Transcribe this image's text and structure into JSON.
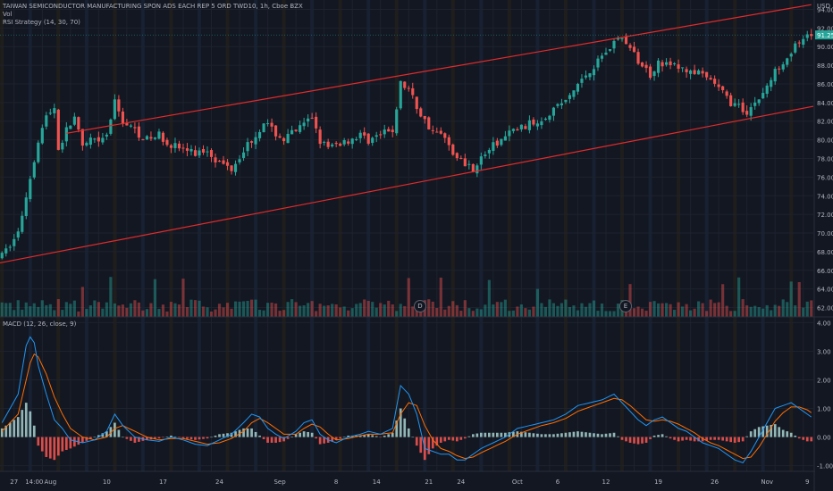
{
  "header": {
    "symbol_line": "TAIWAN SEMICONDUCTOR MANUFACTURING SPON ADS EACH REP 5 ORD TWD10, 1h, Cboe BZX",
    "vol_label": "Vol",
    "strategy_label": "RSI Strategy (14, 30, 70)",
    "currency": "USD"
  },
  "macd_pane": {
    "label": "MACD (12, 26, close, 9)"
  },
  "price_axis": {
    "ticks": [
      "94.00",
      "92.00",
      "90.00",
      "88.00",
      "86.00",
      "84.00",
      "82.00",
      "80.00",
      "78.00",
      "76.00",
      "74.00",
      "72.00",
      "70.00",
      "68.00",
      "66.00",
      "64.00",
      "62.00"
    ],
    "last_price": "91.25"
  },
  "macd_axis": {
    "ticks": [
      "4.00",
      "3.00",
      "2.00",
      "1.00",
      "0.00",
      "-1.00"
    ]
  },
  "time_axis": {
    "labels": [
      "27",
      "14:00",
      "Aug",
      "10",
      "17",
      "24",
      "Sep",
      "8",
      "14",
      "21",
      "24",
      "Oct",
      "6",
      "12",
      "19",
      "26",
      "Nov",
      "9"
    ]
  },
  "event_badges": {
    "dividend": "D",
    "earnings": "E"
  },
  "colors": {
    "background": "#131722",
    "up": "#26a69a",
    "down": "#ef5350",
    "channel": "#e02b2b",
    "macd_line": "#2196f3",
    "signal_line": "#ff6d00",
    "last_price_tag": "#26a69a"
  },
  "chart_data": [
    {
      "type": "candlestick",
      "title": "TAIWAN SEMICONDUCTOR MANUFACTURING SPON ADS EACH REP 5 ORD TWD10, 1h, Cboe BZX",
      "ylim": [
        61,
        95
      ],
      "y_ticks": [
        94,
        92,
        90,
        88,
        86,
        84,
        82,
        80,
        78,
        76,
        74,
        72,
        70,
        68,
        66,
        64,
        62
      ],
      "last_price": 91.25,
      "close_path": [
        [
          0,
          67.5
        ],
        [
          4,
          70
        ],
        [
          7,
          76
        ],
        [
          9,
          80
        ],
        [
          11,
          82.5
        ],
        [
          13,
          83.5
        ],
        [
          14,
          79
        ],
        [
          16,
          81
        ],
        [
          18,
          82.5
        ],
        [
          20,
          79
        ],
        [
          22,
          80
        ],
        [
          24,
          79.5
        ],
        [
          26,
          80.5
        ],
        [
          28,
          84
        ],
        [
          30,
          82
        ],
        [
          33,
          81
        ],
        [
          36,
          80
        ],
        [
          39,
          80.5
        ],
        [
          42,
          79.5
        ],
        [
          45,
          79
        ],
        [
          48,
          78.5
        ],
        [
          51,
          79
        ],
        [
          54,
          77.5
        ],
        [
          57,
          77
        ],
        [
          60,
          79
        ],
        [
          63,
          80.5
        ],
        [
          65,
          82
        ],
        [
          67,
          81
        ],
        [
          70,
          80
        ],
        [
          73,
          81
        ],
        [
          75,
          81.5
        ],
        [
          77,
          82.5
        ],
        [
          79,
          80
        ],
        [
          81,
          79
        ],
        [
          83,
          79.5
        ],
        [
          86,
          80
        ],
        [
          89,
          80.5
        ],
        [
          91,
          80
        ],
        [
          94,
          80.5
        ],
        [
          97,
          81
        ],
        [
          99,
          86
        ],
        [
          101,
          85.5
        ],
        [
          103,
          83.5
        ],
        [
          105,
          82
        ],
        [
          107,
          81
        ],
        [
          109,
          80.5
        ],
        [
          111,
          79.5
        ],
        [
          113,
          78
        ],
        [
          115,
          77.5
        ],
        [
          117,
          77
        ],
        [
          119,
          78
        ],
        [
          121,
          79
        ],
        [
          124,
          80
        ],
        [
          127,
          81
        ],
        [
          130,
          81.5
        ],
        [
          133,
          82
        ],
        [
          136,
          83
        ],
        [
          139,
          84
        ],
        [
          141,
          84.5
        ],
        [
          143,
          86
        ],
        [
          145,
          87
        ],
        [
          147,
          88
        ],
        [
          149,
          89
        ],
        [
          151,
          90
        ],
        [
          153,
          91
        ],
        [
          155,
          90.5
        ],
        [
          157,
          89
        ],
        [
          159,
          88
        ],
        [
          161,
          87
        ],
        [
          163,
          88.5
        ],
        [
          165,
          88
        ],
        [
          167,
          88
        ],
        [
          169,
          87.5
        ],
        [
          171,
          87.5
        ],
        [
          173,
          87
        ],
        [
          175,
          86.5
        ],
        [
          177,
          86
        ],
        [
          179,
          85
        ],
        [
          181,
          84
        ],
        [
          183,
          83.5
        ],
        [
          185,
          83
        ],
        [
          187,
          84
        ],
        [
          189,
          85
        ],
        [
          191,
          86.5
        ],
        [
          193,
          88
        ],
        [
          195,
          89
        ],
        [
          197,
          90
        ],
        [
          199,
          90.5
        ],
        [
          201,
          91.25
        ]
      ]
    },
    {
      "type": "volume",
      "title": "Vol"
    },
    {
      "type": "line",
      "title": "MACD (12, 26, close, 9)",
      "ylim": [
        -1.2,
        4.2
      ],
      "y_ticks": [
        4,
        3,
        2,
        1,
        0,
        -1
      ],
      "series": [
        {
          "name": "MACD",
          "values_path": [
            [
              0,
              0.5
            ],
            [
              4,
              1.5
            ],
            [
              6,
              3.2
            ],
            [
              7,
              3.5
            ],
            [
              8,
              3.3
            ],
            [
              9,
              2.5
            ],
            [
              11,
              1.5
            ],
            [
              13,
              0.6
            ],
            [
              15,
              0.3
            ],
            [
              17,
              -0.1
            ],
            [
              20,
              -0.2
            ],
            [
              23,
              -0.1
            ],
            [
              26,
              0.2
            ],
            [
              28,
              0.8
            ],
            [
              30,
              0.4
            ],
            [
              33,
              0.0
            ],
            [
              36,
              -0.1
            ],
            [
              39,
              -0.15
            ],
            [
              42,
              0.0
            ],
            [
              45,
              -0.1
            ],
            [
              48,
              -0.25
            ],
            [
              51,
              -0.3
            ],
            [
              54,
              -0.1
            ],
            [
              57,
              0.1
            ],
            [
              60,
              0.5
            ],
            [
              62,
              0.8
            ],
            [
              64,
              0.7
            ],
            [
              66,
              0.3
            ],
            [
              68,
              0.1
            ],
            [
              70,
              -0.05
            ],
            [
              73,
              0.2
            ],
            [
              75,
              0.5
            ],
            [
              77,
              0.6
            ],
            [
              79,
              0.1
            ],
            [
              81,
              -0.1
            ],
            [
              83,
              -0.2
            ],
            [
              86,
              0.0
            ],
            [
              89,
              0.1
            ],
            [
              91,
              0.2
            ],
            [
              94,
              0.1
            ],
            [
              97,
              0.3
            ],
            [
              99,
              1.8
            ],
            [
              101,
              1.5
            ],
            [
              103,
              0.8
            ],
            [
              105,
              -0.4
            ],
            [
              107,
              -0.5
            ],
            [
              109,
              -0.6
            ],
            [
              111,
              -0.6
            ],
            [
              113,
              -0.8
            ],
            [
              115,
              -0.8
            ],
            [
              117,
              -0.6
            ],
            [
              119,
              -0.4
            ],
            [
              122,
              -0.2
            ],
            [
              125,
              0.0
            ],
            [
              128,
              0.3
            ],
            [
              131,
              0.4
            ],
            [
              134,
              0.5
            ],
            [
              137,
              0.6
            ],
            [
              140,
              0.8
            ],
            [
              143,
              1.1
            ],
            [
              146,
              1.2
            ],
            [
              149,
              1.3
            ],
            [
              152,
              1.5
            ],
            [
              154,
              1.2
            ],
            [
              156,
              0.9
            ],
            [
              158,
              0.6
            ],
            [
              160,
              0.4
            ],
            [
              162,
              0.6
            ],
            [
              164,
              0.7
            ],
            [
              166,
              0.5
            ],
            [
              168,
              0.3
            ],
            [
              170,
              0.2
            ],
            [
              172,
              0.0
            ],
            [
              174,
              -0.2
            ],
            [
              176,
              -0.3
            ],
            [
              178,
              -0.4
            ],
            [
              180,
              -0.6
            ],
            [
              182,
              -0.8
            ],
            [
              184,
              -0.9
            ],
            [
              186,
              -0.5
            ],
            [
              188,
              0.0
            ],
            [
              190,
              0.5
            ],
            [
              192,
              1.0
            ],
            [
              194,
              1.1
            ],
            [
              196,
              1.2
            ],
            [
              198,
              1.0
            ],
            [
              200,
              0.8
            ],
            [
              201,
              0.7
            ]
          ]
        },
        {
          "name": "Signal",
          "values_path": [
            [
              0,
              0.2
            ],
            [
              4,
              0.8
            ],
            [
              6,
              2.0
            ],
            [
              7,
              2.6
            ],
            [
              8,
              2.9
            ],
            [
              9,
              2.8
            ],
            [
              11,
              2.2
            ],
            [
              13,
              1.4
            ],
            [
              15,
              0.8
            ],
            [
              17,
              0.3
            ],
            [
              20,
              0.0
            ],
            [
              23,
              -0.1
            ],
            [
              26,
              0.0
            ],
            [
              28,
              0.3
            ],
            [
              30,
              0.4
            ],
            [
              33,
              0.2
            ],
            [
              36,
              0.0
            ],
            [
              39,
              -0.1
            ],
            [
              42,
              -0.05
            ],
            [
              45,
              -0.05
            ],
            [
              48,
              -0.15
            ],
            [
              51,
              -0.25
            ],
            [
              54,
              -0.2
            ],
            [
              57,
              -0.05
            ],
            [
              60,
              0.2
            ],
            [
              62,
              0.5
            ],
            [
              64,
              0.65
            ],
            [
              66,
              0.5
            ],
            [
              68,
              0.3
            ],
            [
              70,
              0.1
            ],
            [
              73,
              0.1
            ],
            [
              75,
              0.3
            ],
            [
              77,
              0.45
            ],
            [
              79,
              0.35
            ],
            [
              81,
              0.1
            ],
            [
              83,
              -0.1
            ],
            [
              86,
              -0.05
            ],
            [
              89,
              0.05
            ],
            [
              91,
              0.1
            ],
            [
              94,
              0.1
            ],
            [
              97,
              0.15
            ],
            [
              99,
              0.8
            ],
            [
              101,
              1.2
            ],
            [
              103,
              1.1
            ],
            [
              105,
              0.4
            ],
            [
              107,
              -0.1
            ],
            [
              109,
              -0.4
            ],
            [
              111,
              -0.5
            ],
            [
              113,
              -0.65
            ],
            [
              115,
              -0.75
            ],
            [
              117,
              -0.7
            ],
            [
              119,
              -0.55
            ],
            [
              122,
              -0.35
            ],
            [
              125,
              -0.15
            ],
            [
              128,
              0.1
            ],
            [
              131,
              0.25
            ],
            [
              134,
              0.4
            ],
            [
              137,
              0.5
            ],
            [
              140,
              0.65
            ],
            [
              143,
              0.9
            ],
            [
              146,
              1.05
            ],
            [
              149,
              1.2
            ],
            [
              152,
              1.35
            ],
            [
              154,
              1.3
            ],
            [
              156,
              1.1
            ],
            [
              158,
              0.85
            ],
            [
              160,
              0.6
            ],
            [
              162,
              0.55
            ],
            [
              164,
              0.6
            ],
            [
              166,
              0.55
            ],
            [
              168,
              0.45
            ],
            [
              170,
              0.3
            ],
            [
              172,
              0.15
            ],
            [
              174,
              -0.05
            ],
            [
              176,
              -0.2
            ],
            [
              178,
              -0.3
            ],
            [
              180,
              -0.45
            ],
            [
              182,
              -0.6
            ],
            [
              184,
              -0.75
            ],
            [
              186,
              -0.7
            ],
            [
              188,
              -0.35
            ],
            [
              190,
              0.1
            ],
            [
              192,
              0.55
            ],
            [
              194,
              0.85
            ],
            [
              196,
              1.05
            ],
            [
              198,
              1.05
            ],
            [
              200,
              0.95
            ],
            [
              201,
              0.85
            ]
          ]
        }
      ]
    }
  ]
}
